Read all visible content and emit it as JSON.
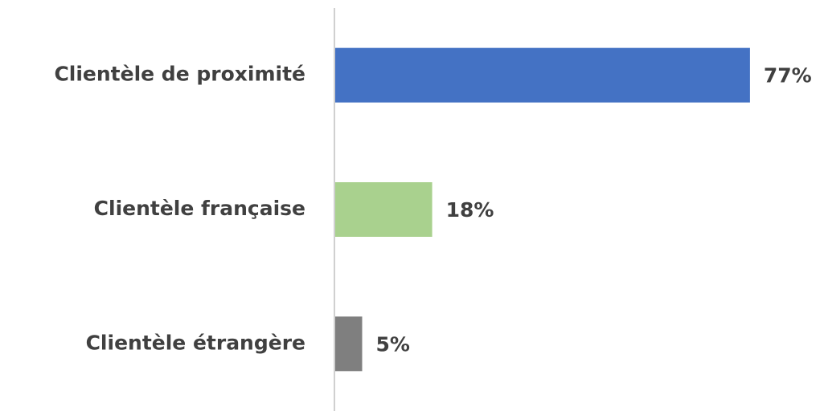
{
  "chart_data": {
    "type": "barh",
    "categories": [
      "Clientèle de proximité",
      "Clientèle française",
      "Clientèle étrangère"
    ],
    "values": [
      77,
      18,
      5
    ],
    "value_labels": [
      "77%",
      "18%",
      "5%"
    ],
    "colors": [
      "#4472c4",
      "#a9d18e",
      "#7f7f7f"
    ]
  }
}
